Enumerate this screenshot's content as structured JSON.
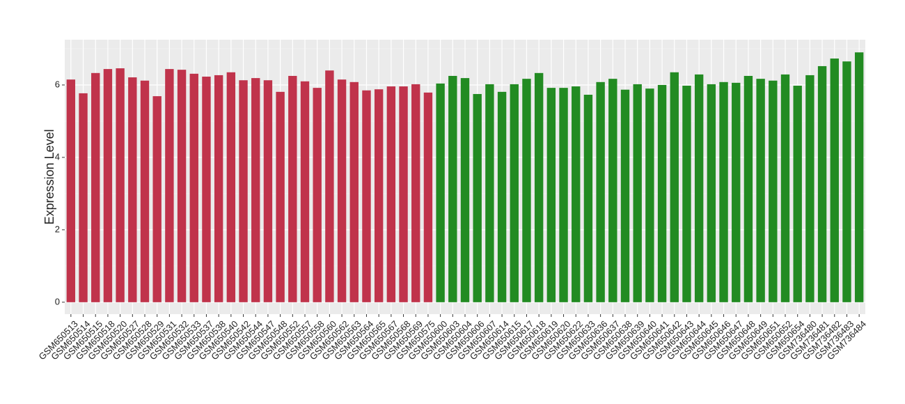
{
  "chart_data": {
    "type": "bar",
    "y_label": "Expression Level",
    "categories": [
      "GSM650513",
      "GSM650514",
      "GSM650515",
      "GSM650518",
      "GSM650520",
      "GSM650527",
      "GSM650528",
      "GSM650529",
      "GSM650531",
      "GSM650532",
      "GSM650533",
      "GSM650537",
      "GSM650538",
      "GSM650540",
      "GSM650542",
      "GSM650544",
      "GSM650547",
      "GSM650548",
      "GSM650552",
      "GSM650557",
      "GSM650558",
      "GSM650560",
      "GSM650562",
      "GSM650563",
      "GSM650564",
      "GSM650565",
      "GSM650567",
      "GSM650568",
      "GSM650569",
      "GSM650575",
      "GSM650600",
      "GSM650603",
      "GSM650604",
      "GSM650606",
      "GSM650607",
      "GSM650614",
      "GSM650615",
      "GSM650617",
      "GSM650618",
      "GSM650619",
      "GSM650620",
      "GSM650622",
      "GSM650633",
      "GSM650636",
      "GSM650637",
      "GSM650638",
      "GSM650639",
      "GSM650640",
      "GSM650641",
      "GSM650642",
      "GSM650643",
      "GSM650644",
      "GSM650645",
      "GSM650646",
      "GSM650647",
      "GSM650648",
      "GSM650649",
      "GSM650651",
      "GSM650652",
      "GSM650654",
      "GSM736480",
      "GSM736481",
      "GSM736482",
      "GSM736483",
      "GSM736484"
    ],
    "values": [
      6.15,
      5.77,
      6.33,
      6.44,
      6.46,
      6.21,
      6.12,
      5.69,
      6.44,
      6.42,
      6.31,
      6.23,
      6.27,
      6.35,
      6.13,
      6.19,
      6.13,
      5.81,
      6.25,
      6.1,
      5.92,
      6.4,
      6.15,
      6.08,
      5.85,
      5.88,
      5.96,
      5.96,
      6.02,
      5.79,
      6.04,
      6.25,
      6.19,
      5.75,
      6.02,
      5.81,
      6.02,
      6.17,
      6.33,
      5.92,
      5.92,
      5.96,
      5.73,
      6.08,
      6.17,
      5.87,
      6.02,
      5.9,
      6.0,
      6.35,
      5.98,
      6.29,
      6.02,
      6.08,
      6.06,
      6.25,
      6.17,
      6.12,
      6.29,
      5.98,
      6.27,
      6.52,
      6.73,
      6.65,
      6.9
    ],
    "colors": [
      "#c0334b",
      "#c0334b",
      "#c0334b",
      "#c0334b",
      "#c0334b",
      "#c0334b",
      "#c0334b",
      "#c0334b",
      "#c0334b",
      "#c0334b",
      "#c0334b",
      "#c0334b",
      "#c0334b",
      "#c0334b",
      "#c0334b",
      "#c0334b",
      "#c0334b",
      "#c0334b",
      "#c0334b",
      "#c0334b",
      "#c0334b",
      "#c0334b",
      "#c0334b",
      "#c0334b",
      "#c0334b",
      "#c0334b",
      "#c0334b",
      "#c0334b",
      "#c0334b",
      "#c0334b",
      "#228b22",
      "#228b22",
      "#228b22",
      "#228b22",
      "#228b22",
      "#228b22",
      "#228b22",
      "#228b22",
      "#228b22",
      "#228b22",
      "#228b22",
      "#228b22",
      "#228b22",
      "#228b22",
      "#228b22",
      "#228b22",
      "#228b22",
      "#228b22",
      "#228b22",
      "#228b22",
      "#228b22",
      "#228b22",
      "#228b22",
      "#228b22",
      "#228b22",
      "#228b22",
      "#228b22",
      "#228b22",
      "#228b22",
      "#228b22",
      "#228b22",
      "#228b22",
      "#228b22",
      "#228b22",
      "#228b22"
    ],
    "ylim": [
      -0.33,
      7.25
    ],
    "yticks": [
      0,
      2,
      4,
      6
    ],
    "grid": true
  }
}
